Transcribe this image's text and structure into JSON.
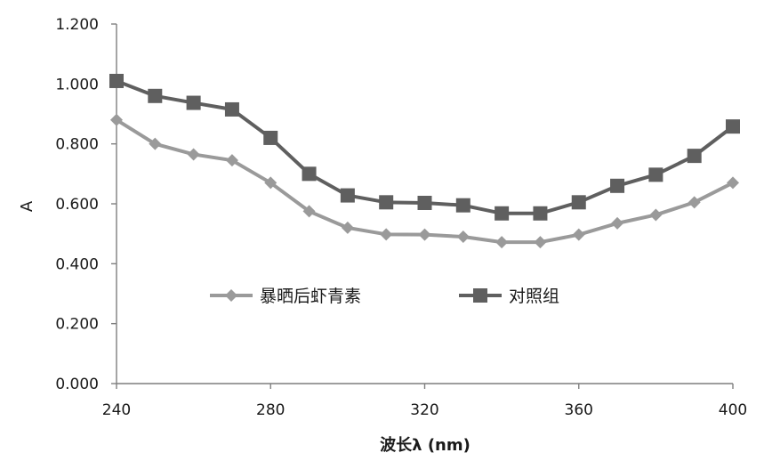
{
  "chart_data": {
    "type": "line",
    "title": "",
    "xlabel": "波长λ (nm)",
    "ylabel": "A",
    "xlim": [
      240,
      400
    ],
    "ylim": [
      0.0,
      1.2
    ],
    "x_ticks": [
      "240",
      "280",
      "320",
      "360",
      "400"
    ],
    "y_ticks": [
      "0.000",
      "0.200",
      "0.400",
      "0.600",
      "0.800",
      "1.000",
      "1.200"
    ],
    "grid": false,
    "legend_position": "center",
    "x": [
      240,
      250,
      260,
      270,
      280,
      290,
      300,
      310,
      320,
      330,
      340,
      350,
      360,
      370,
      380,
      390,
      400
    ],
    "series": [
      {
        "name": "暴晒后虾青素",
        "marker": "diamond",
        "color": "#9a9a9a",
        "values": [
          0.88,
          0.8,
          0.765,
          0.745,
          0.67,
          0.575,
          0.52,
          0.498,
          0.497,
          0.49,
          0.472,
          0.472,
          0.497,
          0.535,
          0.563,
          0.605,
          0.67
        ]
      },
      {
        "name": "对照组",
        "marker": "square",
        "color": "#5f5f5f",
        "values": [
          1.01,
          0.96,
          0.937,
          0.915,
          0.82,
          0.7,
          0.628,
          0.605,
          0.603,
          0.595,
          0.568,
          0.568,
          0.605,
          0.66,
          0.697,
          0.76,
          0.858
        ]
      }
    ]
  }
}
